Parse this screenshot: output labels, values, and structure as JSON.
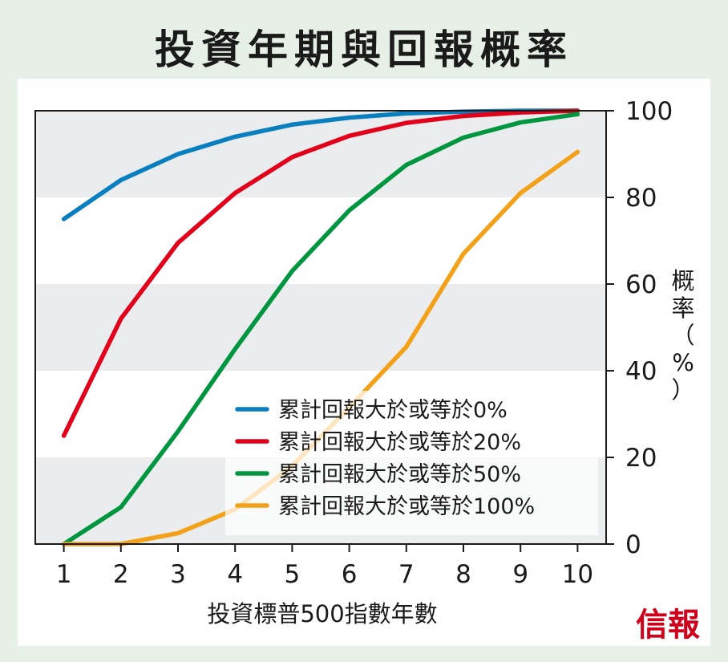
{
  "header": {
    "title": "投資年期與回報概率"
  },
  "brand": {
    "logo_text": "信報",
    "color": "#d0021b"
  },
  "chart_data": {
    "type": "line",
    "title": "投資年期與回報概率",
    "xlabel": "投資標普500指數年數",
    "ylabel": "概率（%）",
    "x": [
      1,
      2,
      3,
      4,
      5,
      6,
      7,
      8,
      9,
      10
    ],
    "xlim": [
      0.5,
      10.5
    ],
    "ylim": [
      0,
      100
    ],
    "yticks": [
      0,
      20,
      40,
      60,
      80,
      100
    ],
    "y_axis_side": "right",
    "grid": "alternating horizontal bands",
    "legend_position": "bottom-right",
    "series": [
      {
        "name": "累計回報大於或等於0%",
        "color": "#0a7fc0",
        "values": [
          75,
          84,
          90,
          94,
          96.8,
          98.4,
          99.4,
          99.8,
          100,
          100
        ]
      },
      {
        "name": "累計回報大於或等於20%",
        "color": "#e2001a",
        "values": [
          25,
          52,
          69.5,
          81,
          89.3,
          94.2,
          97.2,
          98.8,
          99.6,
          100
        ]
      },
      {
        "name": "累計回報大於或等於50%",
        "color": "#009640",
        "values": [
          0,
          8.5,
          26,
          45,
          63,
          77,
          87.5,
          93.8,
          97.3,
          99.2
        ]
      },
      {
        "name": "累計回報大於或等於100%",
        "color": "#f4a11a",
        "values": [
          0,
          0,
          2.5,
          8,
          18,
          31.5,
          45.5,
          67,
          81,
          90.5
        ]
      }
    ]
  }
}
